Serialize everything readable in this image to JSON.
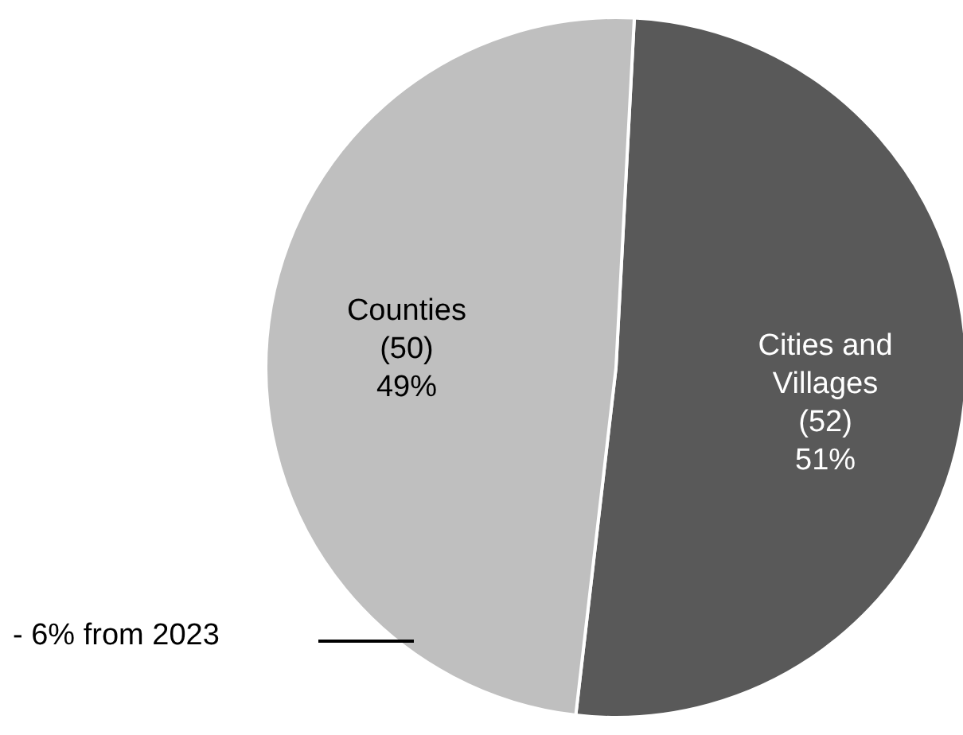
{
  "chart_data": {
    "type": "pie",
    "categories": [
      "Cities and Villages",
      "Counties"
    ],
    "values": [
      51,
      49
    ],
    "colors": [
      "#595959",
      "#bfbfbf"
    ],
    "value_labels": [
      "(52)\n51%",
      "(50)\n49%"
    ],
    "annotations": [
      "- 6% from 2023"
    ]
  }
}
